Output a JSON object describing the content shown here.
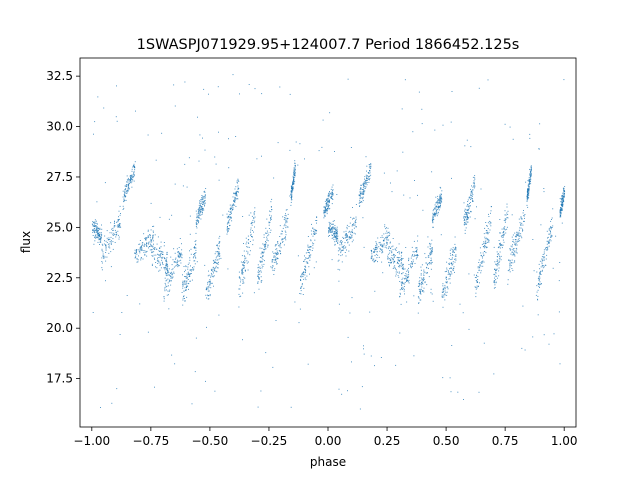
{
  "chart_data": {
    "type": "scatter",
    "title": "1SWASPJ071929.95+124007.7 Period 1866452.125s",
    "xlabel": "phase",
    "ylabel": "flux",
    "xlim": [
      -1.05,
      1.05
    ],
    "ylim": [
      15.1,
      33.4
    ],
    "xticks": [
      -1.0,
      -0.75,
      -0.5,
      -0.25,
      0.0,
      0.25,
      0.5,
      0.75,
      1.0
    ],
    "xtick_labels": [
      "−1.00",
      "−0.75",
      "−0.50",
      "−0.25",
      "0.00",
      "0.25",
      "0.50",
      "0.75",
      "1.00"
    ],
    "yticks": [
      17.5,
      20.0,
      22.5,
      25.0,
      27.5,
      30.0,
      32.5
    ],
    "ytick_labels": [
      "17.5",
      "20.0",
      "22.5",
      "25.0",
      "27.5",
      "30.0",
      "32.5"
    ],
    "grid": false,
    "marker_color": "#1f77b4",
    "segments": [
      {
        "x": [
          -1.0,
          -0.96
        ],
        "y": [
          25.0,
          24.6
        ],
        "spread": 0.8
      },
      {
        "x": [
          -0.96,
          -0.88
        ],
        "y": [
          23.6,
          25.4
        ],
        "spread": 1.2
      },
      {
        "x": [
          -0.87,
          -0.82
        ],
        "y": [
          26.4,
          28.0
        ],
        "spread": 0.8
      },
      {
        "x": [
          -0.82,
          -0.74
        ],
        "y": [
          23.6,
          24.6
        ],
        "spread": 1.0
      },
      {
        "x": [
          -0.75,
          -0.68
        ],
        "y": [
          23.8,
          23.2
        ],
        "spread": 1.4
      },
      {
        "x": [
          -0.7,
          -0.62
        ],
        "y": [
          21.8,
          24.0
        ],
        "spread": 1.2
      },
      {
        "x": [
          -0.62,
          -0.56
        ],
        "y": [
          21.6,
          24.0
        ],
        "spread": 1.4
      },
      {
        "x": [
          -0.56,
          -0.52
        ],
        "y": [
          25.4,
          26.6
        ],
        "spread": 0.8
      },
      {
        "x": [
          -0.52,
          -0.46
        ],
        "y": [
          21.6,
          24.0
        ],
        "spread": 1.4
      },
      {
        "x": [
          -0.43,
          -0.38
        ],
        "y": [
          25.0,
          27.2
        ],
        "spread": 1.0
      },
      {
        "x": [
          -0.38,
          -0.31
        ],
        "y": [
          22.0,
          25.6
        ],
        "spread": 1.4
      },
      {
        "x": [
          -0.3,
          -0.24
        ],
        "y": [
          22.4,
          25.8
        ],
        "spread": 1.4
      },
      {
        "x": [
          -0.24,
          -0.17
        ],
        "y": [
          23.0,
          25.6
        ],
        "spread": 1.2
      },
      {
        "x": [
          -0.16,
          -0.14
        ],
        "y": [
          26.4,
          28.0
        ],
        "spread": 0.8
      },
      {
        "x": [
          -0.12,
          -0.05
        ],
        "y": [
          22.0,
          25.2
        ],
        "spread": 1.2
      },
      {
        "x": [
          -0.02,
          0.02
        ],
        "y": [
          25.8,
          26.8
        ],
        "spread": 0.7
      },
      {
        "x": [
          0.0,
          0.04
        ],
        "y": [
          25.0,
          24.6
        ],
        "spread": 0.8
      },
      {
        "x": [
          0.04,
          0.12
        ],
        "y": [
          23.6,
          25.4
        ],
        "spread": 1.2
      },
      {
        "x": [
          0.13,
          0.18
        ],
        "y": [
          26.4,
          28.0
        ],
        "spread": 0.8
      },
      {
        "x": [
          0.18,
          0.26
        ],
        "y": [
          23.6,
          24.6
        ],
        "spread": 1.0
      },
      {
        "x": [
          0.25,
          0.32
        ],
        "y": [
          23.8,
          23.2
        ],
        "spread": 1.4
      },
      {
        "x": [
          0.3,
          0.38
        ],
        "y": [
          21.8,
          24.0
        ],
        "spread": 1.2
      },
      {
        "x": [
          0.38,
          0.44
        ],
        "y": [
          21.6,
          24.0
        ],
        "spread": 1.4
      },
      {
        "x": [
          0.44,
          0.48
        ],
        "y": [
          25.4,
          26.6
        ],
        "spread": 0.8
      },
      {
        "x": [
          0.48,
          0.54
        ],
        "y": [
          21.6,
          24.0
        ],
        "spread": 1.4
      },
      {
        "x": [
          0.57,
          0.62
        ],
        "y": [
          25.0,
          27.2
        ],
        "spread": 1.0
      },
      {
        "x": [
          0.62,
          0.69
        ],
        "y": [
          22.0,
          25.6
        ],
        "spread": 1.4
      },
      {
        "x": [
          0.7,
          0.76
        ],
        "y": [
          22.4,
          25.8
        ],
        "spread": 1.4
      },
      {
        "x": [
          0.76,
          0.83
        ],
        "y": [
          23.0,
          25.6
        ],
        "spread": 1.2
      },
      {
        "x": [
          0.84,
          0.86
        ],
        "y": [
          26.4,
          28.0
        ],
        "spread": 0.8
      },
      {
        "x": [
          0.88,
          0.95
        ],
        "y": [
          22.0,
          25.2
        ],
        "spread": 1.2
      },
      {
        "x": [
          0.98,
          1.0
        ],
        "y": [
          25.8,
          26.8
        ],
        "spread": 0.7
      }
    ],
    "outlier_range": {
      "x": [
        -1.0,
        1.0
      ],
      "y": [
        15.8,
        32.6
      ]
    }
  }
}
